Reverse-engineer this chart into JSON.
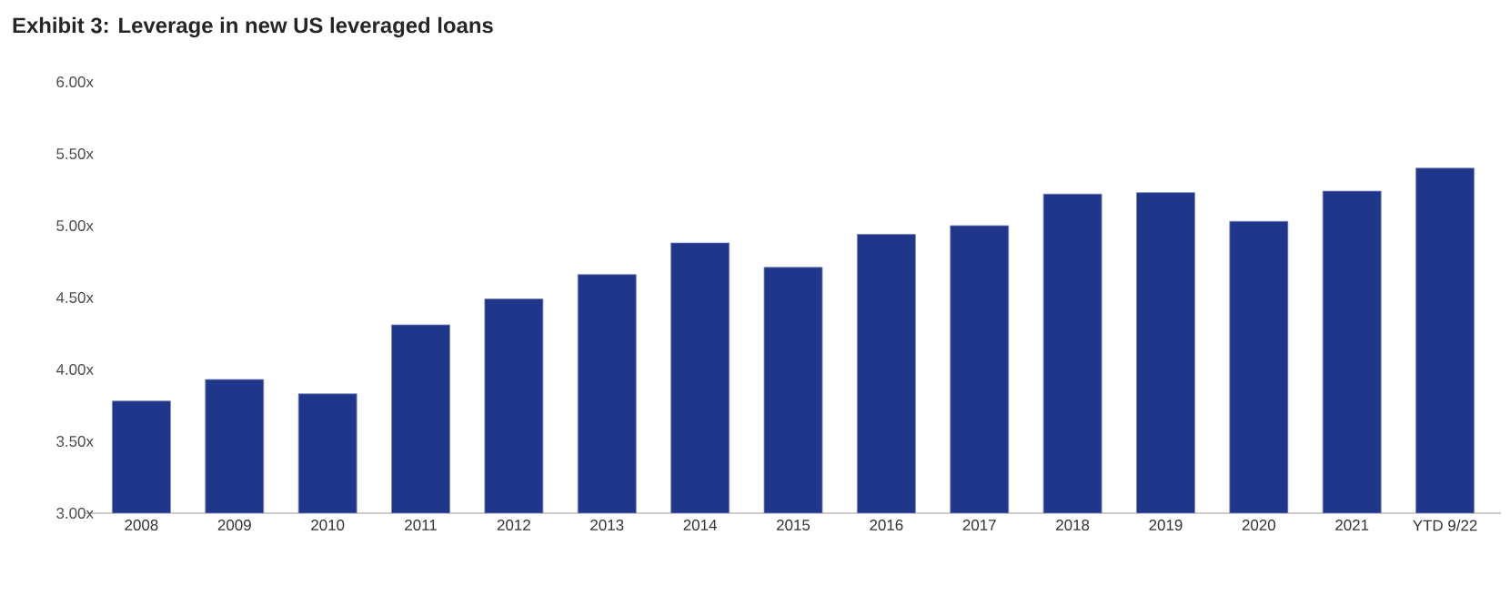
{
  "chart_data": {
    "type": "bar",
    "title": "Exhibit 3: Leverage in new US leveraged loans",
    "categories": [
      "2008",
      "2009",
      "2010",
      "2011",
      "2012",
      "2013",
      "2014",
      "2015",
      "2016",
      "2017",
      "2018",
      "2019",
      "2020",
      "2021",
      "YTD 9/22"
    ],
    "values": [
      3.78,
      3.93,
      3.83,
      4.31,
      4.49,
      4.66,
      4.88,
      4.71,
      4.94,
      5.0,
      5.22,
      5.23,
      5.03,
      5.24,
      5.4
    ],
    "color": "#1f368a",
    "ylim": [
      3,
      6
    ],
    "yticks": [
      {
        "value": 3,
        "label": "3.00x"
      },
      {
        "value": 3.5,
        "label": "3.50x"
      },
      {
        "value": 4,
        "label": "4.00x"
      },
      {
        "value": 4.5,
        "label": "4.50x"
      },
      {
        "value": 5,
        "label": "5.00x"
      },
      {
        "value": 5.5,
        "label": "5.50x"
      },
      {
        "value": 6,
        "label": "6.00x"
      }
    ],
    "legend": false
  }
}
